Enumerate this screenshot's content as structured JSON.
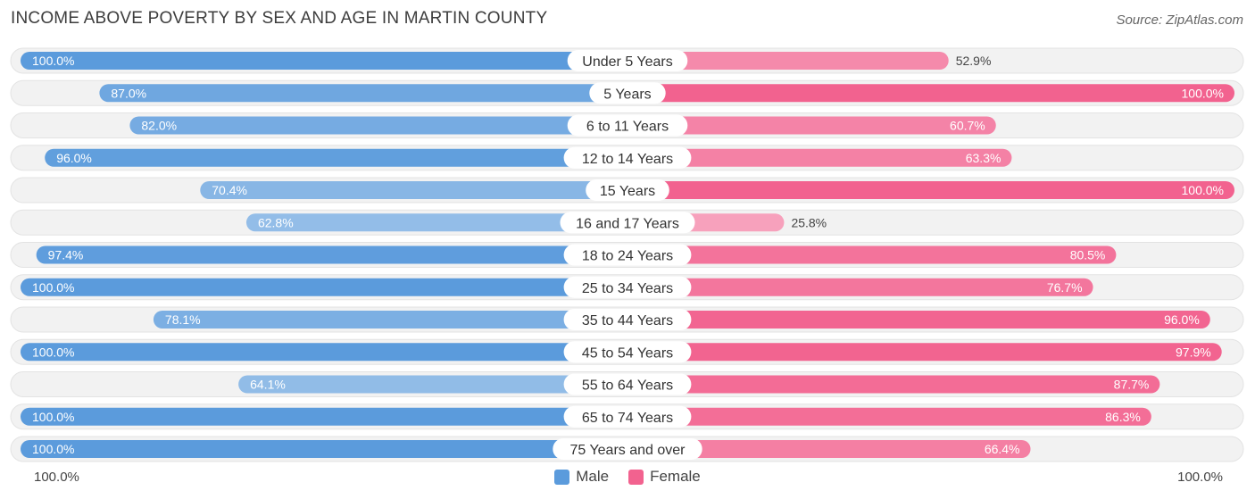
{
  "title": "INCOME ABOVE POVERTY BY SEX AND AGE IN MARTIN COUNTY",
  "source": "Source: ZipAtlas.com",
  "colors": {
    "male": "#5b9bdc",
    "male_light": "#9fc4ea",
    "female": "#f2628f",
    "female_light": "#f7a6bf",
    "track": "#f0f0f0"
  },
  "legend": {
    "male": "Male",
    "female": "Female"
  },
  "axis": {
    "left": "100.0%",
    "right": "100.0%"
  },
  "chart_data": {
    "type": "bar",
    "orientation": "horizontal-diverging",
    "title": "INCOME ABOVE POVERTY BY SEX AND AGE IN MARTIN COUNTY",
    "categories": [
      "Under 5 Years",
      "5 Years",
      "6 to 11 Years",
      "12 to 14 Years",
      "15 Years",
      "16 and 17 Years",
      "18 to 24 Years",
      "25 to 34 Years",
      "35 to 44 Years",
      "45 to 54 Years",
      "55 to 64 Years",
      "65 to 74 Years",
      "75 Years and over"
    ],
    "series": [
      {
        "name": "Male",
        "values": [
          100.0,
          87.0,
          82.0,
          96.0,
          70.4,
          62.8,
          97.4,
          100.0,
          78.1,
          100.0,
          64.1,
          100.0,
          100.0
        ],
        "labels": [
          "100.0%",
          "87.0%",
          "82.0%",
          "96.0%",
          "70.4%",
          "62.8%",
          "97.4%",
          "100.0%",
          "78.1%",
          "100.0%",
          "64.1%",
          "100.0%",
          "100.0%"
        ]
      },
      {
        "name": "Female",
        "values": [
          52.9,
          100.0,
          60.7,
          63.3,
          100.0,
          25.8,
          80.5,
          76.7,
          96.0,
          97.9,
          87.7,
          86.3,
          66.4
        ],
        "labels": [
          "52.9%",
          "100.0%",
          "60.7%",
          "63.3%",
          "100.0%",
          "25.8%",
          "80.5%",
          "76.7%",
          "96.0%",
          "97.9%",
          "87.7%",
          "86.3%",
          "66.4%"
        ]
      }
    ],
    "xlim": [
      0,
      100
    ],
    "legend_position": "bottom-center"
  }
}
